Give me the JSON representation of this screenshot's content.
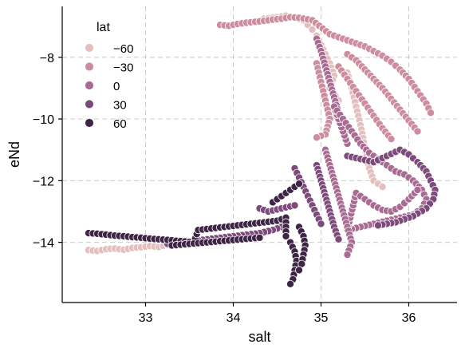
{
  "chart_data": {
    "type": "scatter",
    "xlabel": "salt",
    "ylabel": "eNd",
    "xlim": [
      32.05,
      36.55
    ],
    "ylim": [
      -15.95,
      -6.35
    ],
    "xticks": [
      33,
      34,
      35,
      36
    ],
    "xtick_labels": [
      "33",
      "34",
      "35",
      "36"
    ],
    "yticks": [
      -14,
      -12,
      -10,
      -8
    ],
    "ytick_labels": [
      "−14",
      "−12",
      "−10",
      "−8"
    ],
    "grid": true,
    "grid_style": "dashed",
    "hue": "lat",
    "legend": {
      "title": "lat",
      "placement": "top-left",
      "entries": [
        {
          "label": "−60",
          "color": "#e3bfbf"
        },
        {
          "label": "−30",
          "color": "#cc8d9f"
        },
        {
          "label": "0",
          "color": "#a86b92"
        },
        {
          "label": "30",
          "color": "#7d4a7c"
        },
        {
          "label": "60",
          "color": "#3f2545"
        }
      ]
    },
    "point_groups": [
      {
        "name": "lat -60",
        "color": "#e3bfbf",
        "points": [
          [
            32.35,
            -14.25
          ],
          [
            32.45,
            -14.28
          ],
          [
            32.55,
            -14.22
          ],
          [
            32.65,
            -14.2
          ],
          [
            32.75,
            -14.24
          ],
          [
            32.85,
            -14.18
          ],
          [
            32.95,
            -14.16
          ],
          [
            33.05,
            -14.12
          ],
          [
            33.15,
            -14.15
          ],
          [
            33.25,
            -14.08
          ],
          [
            33.35,
            -14.05
          ],
          [
            33.45,
            -14.0
          ],
          [
            34.35,
            -6.75
          ],
          [
            34.5,
            -6.7
          ],
          [
            34.6,
            -6.65
          ],
          [
            34.7,
            -6.72
          ],
          [
            34.8,
            -6.8
          ],
          [
            34.85,
            -6.95
          ],
          [
            34.9,
            -7.1
          ],
          [
            34.95,
            -7.3
          ],
          [
            35.0,
            -7.6
          ],
          [
            35.05,
            -7.9
          ],
          [
            35.1,
            -8.2
          ],
          [
            35.15,
            -8.6
          ],
          [
            35.1,
            -9.0
          ],
          [
            35.2,
            -9.4
          ],
          [
            35.15,
            -9.8
          ],
          [
            35.25,
            -10.3
          ],
          [
            35.3,
            -8.5
          ],
          [
            35.35,
            -9.0
          ],
          [
            35.4,
            -9.6
          ],
          [
            35.45,
            -10.2
          ],
          [
            35.5,
            -10.9
          ],
          [
            35.55,
            -11.6
          ],
          [
            35.6,
            -12.0
          ],
          [
            35.7,
            -12.2
          ]
        ]
      },
      {
        "name": "lat -30",
        "color": "#cc8d9f",
        "points": [
          [
            33.85,
            -6.95
          ],
          [
            33.95,
            -6.98
          ],
          [
            34.05,
            -6.92
          ],
          [
            34.15,
            -6.88
          ],
          [
            34.25,
            -6.85
          ],
          [
            34.35,
            -6.82
          ],
          [
            34.45,
            -6.78
          ],
          [
            34.55,
            -6.75
          ],
          [
            34.65,
            -6.7
          ],
          [
            34.75,
            -6.72
          ],
          [
            34.9,
            -6.8
          ],
          [
            35.1,
            -7.25
          ],
          [
            35.2,
            -7.35
          ],
          [
            35.3,
            -7.45
          ],
          [
            35.4,
            -7.55
          ],
          [
            35.5,
            -7.65
          ],
          [
            35.6,
            -7.8
          ],
          [
            35.7,
            -7.95
          ],
          [
            35.8,
            -8.15
          ],
          [
            35.9,
            -8.4
          ],
          [
            36.0,
            -8.7
          ],
          [
            36.1,
            -9.1
          ],
          [
            36.2,
            -9.5
          ],
          [
            36.25,
            -9.8
          ],
          [
            35.3,
            -7.9
          ],
          [
            35.4,
            -8.1
          ],
          [
            35.5,
            -8.4
          ],
          [
            35.6,
            -8.7
          ],
          [
            35.7,
            -9.0
          ],
          [
            35.8,
            -9.35
          ],
          [
            35.9,
            -9.7
          ],
          [
            36.0,
            -10.05
          ],
          [
            36.1,
            -10.4
          ],
          [
            35.2,
            -8.3
          ],
          [
            35.3,
            -8.7
          ],
          [
            35.4,
            -9.1
          ],
          [
            35.5,
            -9.5
          ],
          [
            35.6,
            -9.9
          ],
          [
            35.7,
            -10.3
          ],
          [
            35.8,
            -10.65
          ],
          [
            34.95,
            -8.2
          ],
          [
            35.0,
            -8.8
          ],
          [
            35.05,
            -9.4
          ],
          [
            35.1,
            -10.0
          ],
          [
            35.05,
            -10.5
          ],
          [
            34.95,
            -10.6
          ]
        ]
      },
      {
        "name": "lat 0",
        "color": "#a86b92",
        "points": [
          [
            34.95,
            -7.4
          ],
          [
            35.0,
            -7.8
          ],
          [
            35.05,
            -8.3
          ],
          [
            35.1,
            -8.8
          ],
          [
            35.15,
            -9.3
          ],
          [
            35.2,
            -9.8
          ],
          [
            35.25,
            -10.3
          ],
          [
            35.3,
            -10.8
          ],
          [
            35.15,
            -9.6
          ],
          [
            35.25,
            -10.0
          ],
          [
            35.35,
            -10.4
          ],
          [
            35.45,
            -10.8
          ],
          [
            35.55,
            -11.1
          ],
          [
            35.65,
            -11.3
          ],
          [
            35.75,
            -11.5
          ],
          [
            35.85,
            -11.7
          ],
          [
            35.95,
            -11.8
          ],
          [
            36.05,
            -12.0
          ],
          [
            36.15,
            -12.3
          ],
          [
            36.2,
            -12.6
          ],
          [
            36.15,
            -12.9
          ],
          [
            36.05,
            -13.1
          ],
          [
            35.9,
            -13.2
          ],
          [
            35.75,
            -13.3
          ],
          [
            35.6,
            -13.4
          ],
          [
            35.45,
            -13.5
          ],
          [
            35.3,
            -13.6
          ],
          [
            35.4,
            -12.4
          ],
          [
            35.5,
            -12.6
          ],
          [
            35.6,
            -12.8
          ],
          [
            35.7,
            -12.95
          ],
          [
            35.8,
            -13.0
          ],
          [
            35.9,
            -12.85
          ],
          [
            36.0,
            -12.6
          ],
          [
            36.1,
            -12.3
          ],
          [
            35.05,
            -11.0
          ],
          [
            35.1,
            -11.5
          ],
          [
            35.15,
            -12.0
          ],
          [
            35.2,
            -12.5
          ],
          [
            35.25,
            -13.0
          ],
          [
            35.3,
            -13.5
          ],
          [
            35.35,
            -14.0
          ],
          [
            35.3,
            -14.4
          ]
        ]
      },
      {
        "name": "lat 30",
        "color": "#7d4a7c",
        "points": [
          [
            34.95,
            -11.5
          ],
          [
            35.0,
            -12.0
          ],
          [
            35.05,
            -12.5
          ],
          [
            35.1,
            -13.0
          ],
          [
            35.15,
            -13.5
          ],
          [
            35.2,
            -13.9
          ],
          [
            35.3,
            -11.2
          ],
          [
            35.45,
            -11.3
          ],
          [
            35.6,
            -11.4
          ],
          [
            35.75,
            -11.2
          ],
          [
            35.9,
            -11.0
          ],
          [
            36.0,
            -11.15
          ],
          [
            36.1,
            -11.4
          ],
          [
            36.2,
            -11.7
          ],
          [
            36.25,
            -12.0
          ],
          [
            36.3,
            -12.3
          ],
          [
            36.28,
            -12.6
          ],
          [
            36.2,
            -12.9
          ],
          [
            36.05,
            -13.15
          ],
          [
            35.85,
            -13.35
          ],
          [
            35.65,
            -13.45
          ],
          [
            34.55,
            -13.5
          ],
          [
            34.45,
            -13.6
          ],
          [
            34.3,
            -13.7
          ],
          [
            34.15,
            -13.75
          ],
          [
            34.0,
            -13.8
          ],
          [
            33.85,
            -13.85
          ],
          [
            33.7,
            -13.9
          ],
          [
            33.55,
            -13.95
          ],
          [
            33.4,
            -14.0
          ],
          [
            33.25,
            -14.05
          ],
          [
            34.7,
            -11.6
          ],
          [
            34.75,
            -11.9
          ],
          [
            34.8,
            -12.2
          ],
          [
            34.85,
            -12.5
          ],
          [
            34.9,
            -12.8
          ],
          [
            34.95,
            -13.1
          ],
          [
            35.0,
            -13.4
          ],
          [
            34.3,
            -12.9
          ],
          [
            34.4,
            -13.0
          ],
          [
            34.55,
            -12.9
          ],
          [
            34.7,
            -12.8
          ]
        ]
      },
      {
        "name": "lat 60",
        "color": "#3f2545",
        "points": [
          [
            32.35,
            -13.7
          ],
          [
            32.45,
            -13.72
          ],
          [
            32.55,
            -13.75
          ],
          [
            32.65,
            -13.78
          ],
          [
            32.75,
            -13.8
          ],
          [
            32.85,
            -13.83
          ],
          [
            32.95,
            -13.85
          ],
          [
            33.05,
            -13.88
          ],
          [
            33.15,
            -13.9
          ],
          [
            33.25,
            -13.92
          ],
          [
            33.35,
            -13.95
          ],
          [
            33.45,
            -13.97
          ],
          [
            33.55,
            -14.0
          ],
          [
            33.6,
            -13.6
          ],
          [
            33.75,
            -13.55
          ],
          [
            33.9,
            -13.5
          ],
          [
            34.05,
            -13.45
          ],
          [
            34.2,
            -13.4
          ],
          [
            34.35,
            -13.35
          ],
          [
            34.5,
            -13.3
          ],
          [
            34.6,
            -13.2
          ],
          [
            34.6,
            -13.8
          ],
          [
            34.65,
            -14.0
          ],
          [
            34.7,
            -14.3
          ],
          [
            34.72,
            -14.6
          ],
          [
            34.7,
            -14.9
          ],
          [
            34.68,
            -15.2
          ],
          [
            34.65,
            -15.35
          ],
          [
            34.75,
            -13.5
          ],
          [
            34.8,
            -13.8
          ],
          [
            34.82,
            -14.1
          ],
          [
            34.8,
            -14.4
          ],
          [
            34.78,
            -14.7
          ],
          [
            34.75,
            -14.9
          ],
          [
            34.45,
            -12.7
          ],
          [
            34.55,
            -12.5
          ],
          [
            34.65,
            -12.3
          ],
          [
            34.75,
            -12.1
          ],
          [
            33.3,
            -14.1
          ],
          [
            33.5,
            -14.05
          ],
          [
            33.7,
            -14.0
          ],
          [
            33.9,
            -13.95
          ],
          [
            34.1,
            -13.9
          ],
          [
            34.3,
            -13.85
          ]
        ]
      }
    ]
  }
}
